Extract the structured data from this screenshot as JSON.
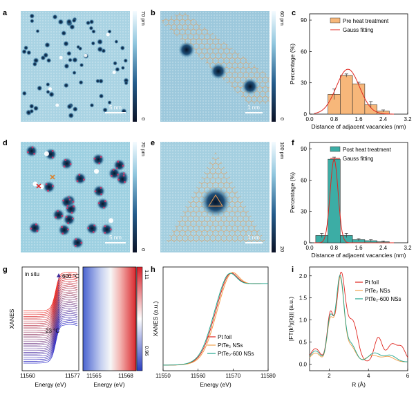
{
  "panels": {
    "a": {
      "label": "a",
      "scalebar": "5 nm",
      "colorbar_max": "70 pm",
      "colorbar_min": "0"
    },
    "b": {
      "label": "b",
      "scalebar": "1 nm",
      "colorbar_max": "60 pm",
      "colorbar_min": "0"
    },
    "d": {
      "label": "d",
      "scalebar": "5 nm",
      "colorbar_max": "70 pm",
      "colorbar_min": "0"
    },
    "e": {
      "label": "e",
      "scalebar": "1 nm",
      "colorbar_max": "100 pm",
      "colorbar_min": "20"
    },
    "g": {
      "label": "g",
      "annotation_insitu": "in situ",
      "annotation_hot": "600 °C",
      "annotation_cold": "23 °C",
      "colorbar_max": "1.11",
      "colorbar_min": "0.96"
    },
    "c": {
      "label": "c"
    },
    "f": {
      "label": "f"
    },
    "h": {
      "label": "h"
    },
    "i": {
      "label": "i"
    }
  },
  "chart_data": [
    {
      "id": "c",
      "type": "bar",
      "xlabel": "Distance of adjacent vacancies (nm)",
      "ylabel": "Percentage (%)",
      "xlim": [
        0,
        3.2
      ],
      "ylim": [
        0,
        96
      ],
      "xticks": [
        "0.0",
        "0.8",
        "1.6",
        "2.4",
        "3.2"
      ],
      "yticks": [
        "0",
        "30",
        "60",
        "90"
      ],
      "bar_width": 0.4,
      "x": [
        0.8,
        1.2,
        1.6,
        2.0,
        2.4
      ],
      "values": [
        19,
        37,
        29,
        9,
        3
      ],
      "errors": [
        5,
        1.5,
        1.5,
        3,
        1
      ],
      "legend": [
        "Pre heat treatment",
        "Gauss fitting"
      ],
      "bar_color": "#f7b77a",
      "fit": {
        "mu": 1.25,
        "sigma": 0.38,
        "amp": 43,
        "color": "#e0261f"
      }
    },
    {
      "id": "f",
      "type": "bar",
      "xlabel": "Distance of adjacent vacancies (nm)",
      "ylabel": "Percentage (%)",
      "xlim": [
        0,
        3.2
      ],
      "ylim": [
        0,
        96
      ],
      "xticks": [
        "0.0",
        "0.8",
        "1.6",
        "2.4",
        "3.2"
      ],
      "yticks": [
        "0",
        "30",
        "60",
        "90"
      ],
      "bar_width": 0.4,
      "x": [
        0.4,
        0.8,
        1.2,
        1.6,
        2.0,
        2.4
      ],
      "values": [
        7,
        80,
        7,
        3,
        2,
        1
      ],
      "errors": [
        2,
        2,
        2,
        1,
        1,
        0.5
      ],
      "legend": [
        "Post heat treatment",
        "Gauss fitting"
      ],
      "bar_color": "#3cada5",
      "fit": {
        "mu": 0.8,
        "sigma": 0.13,
        "amp": 80,
        "color": "#e0261f"
      }
    },
    {
      "id": "h",
      "type": "line",
      "xlabel": "Energy (eV)",
      "ylabel": "XANES (a.u.)",
      "xlim": [
        11550,
        11580
      ],
      "xticks": [
        "11550",
        "11560",
        "11570",
        "11580"
      ],
      "series": [
        {
          "name": "Pt foil",
          "color": "#e0261f"
        },
        {
          "name": "PtTe₂ NSs",
          "color": "#f0a04b"
        },
        {
          "name": "PtTe₂-600 NSs",
          "color": "#1fa58c"
        }
      ]
    },
    {
      "id": "i",
      "type": "line",
      "xlabel": "R (Å)",
      "ylabel": "|FT(k³χ(k))| (a.u.)",
      "xlim": [
        1,
        6
      ],
      "ylim": [
        -0.15,
        2.2
      ],
      "xticks": [
        "2",
        "4",
        "6"
      ],
      "yticks": [
        "0.0",
        "0.5",
        "1.0",
        "1.5",
        "2.0"
      ],
      "series": [
        {
          "name": "Pt foil",
          "color": "#e0261f"
        },
        {
          "name": "PtTe₂ NSs",
          "color": "#f0a04b"
        },
        {
          "name": "PtTe₂-600 NSs",
          "color": "#1fa58c"
        }
      ]
    },
    {
      "id": "g-left",
      "type": "line",
      "xlabel": "Energy (eV)",
      "ylabel": "XANES",
      "xticks": [
        "11560",
        "11577"
      ]
    },
    {
      "id": "g-right",
      "type": "heatmap",
      "xlabel": "Energy (eV)",
      "xticks": [
        "11565",
        "11568"
      ]
    }
  ]
}
